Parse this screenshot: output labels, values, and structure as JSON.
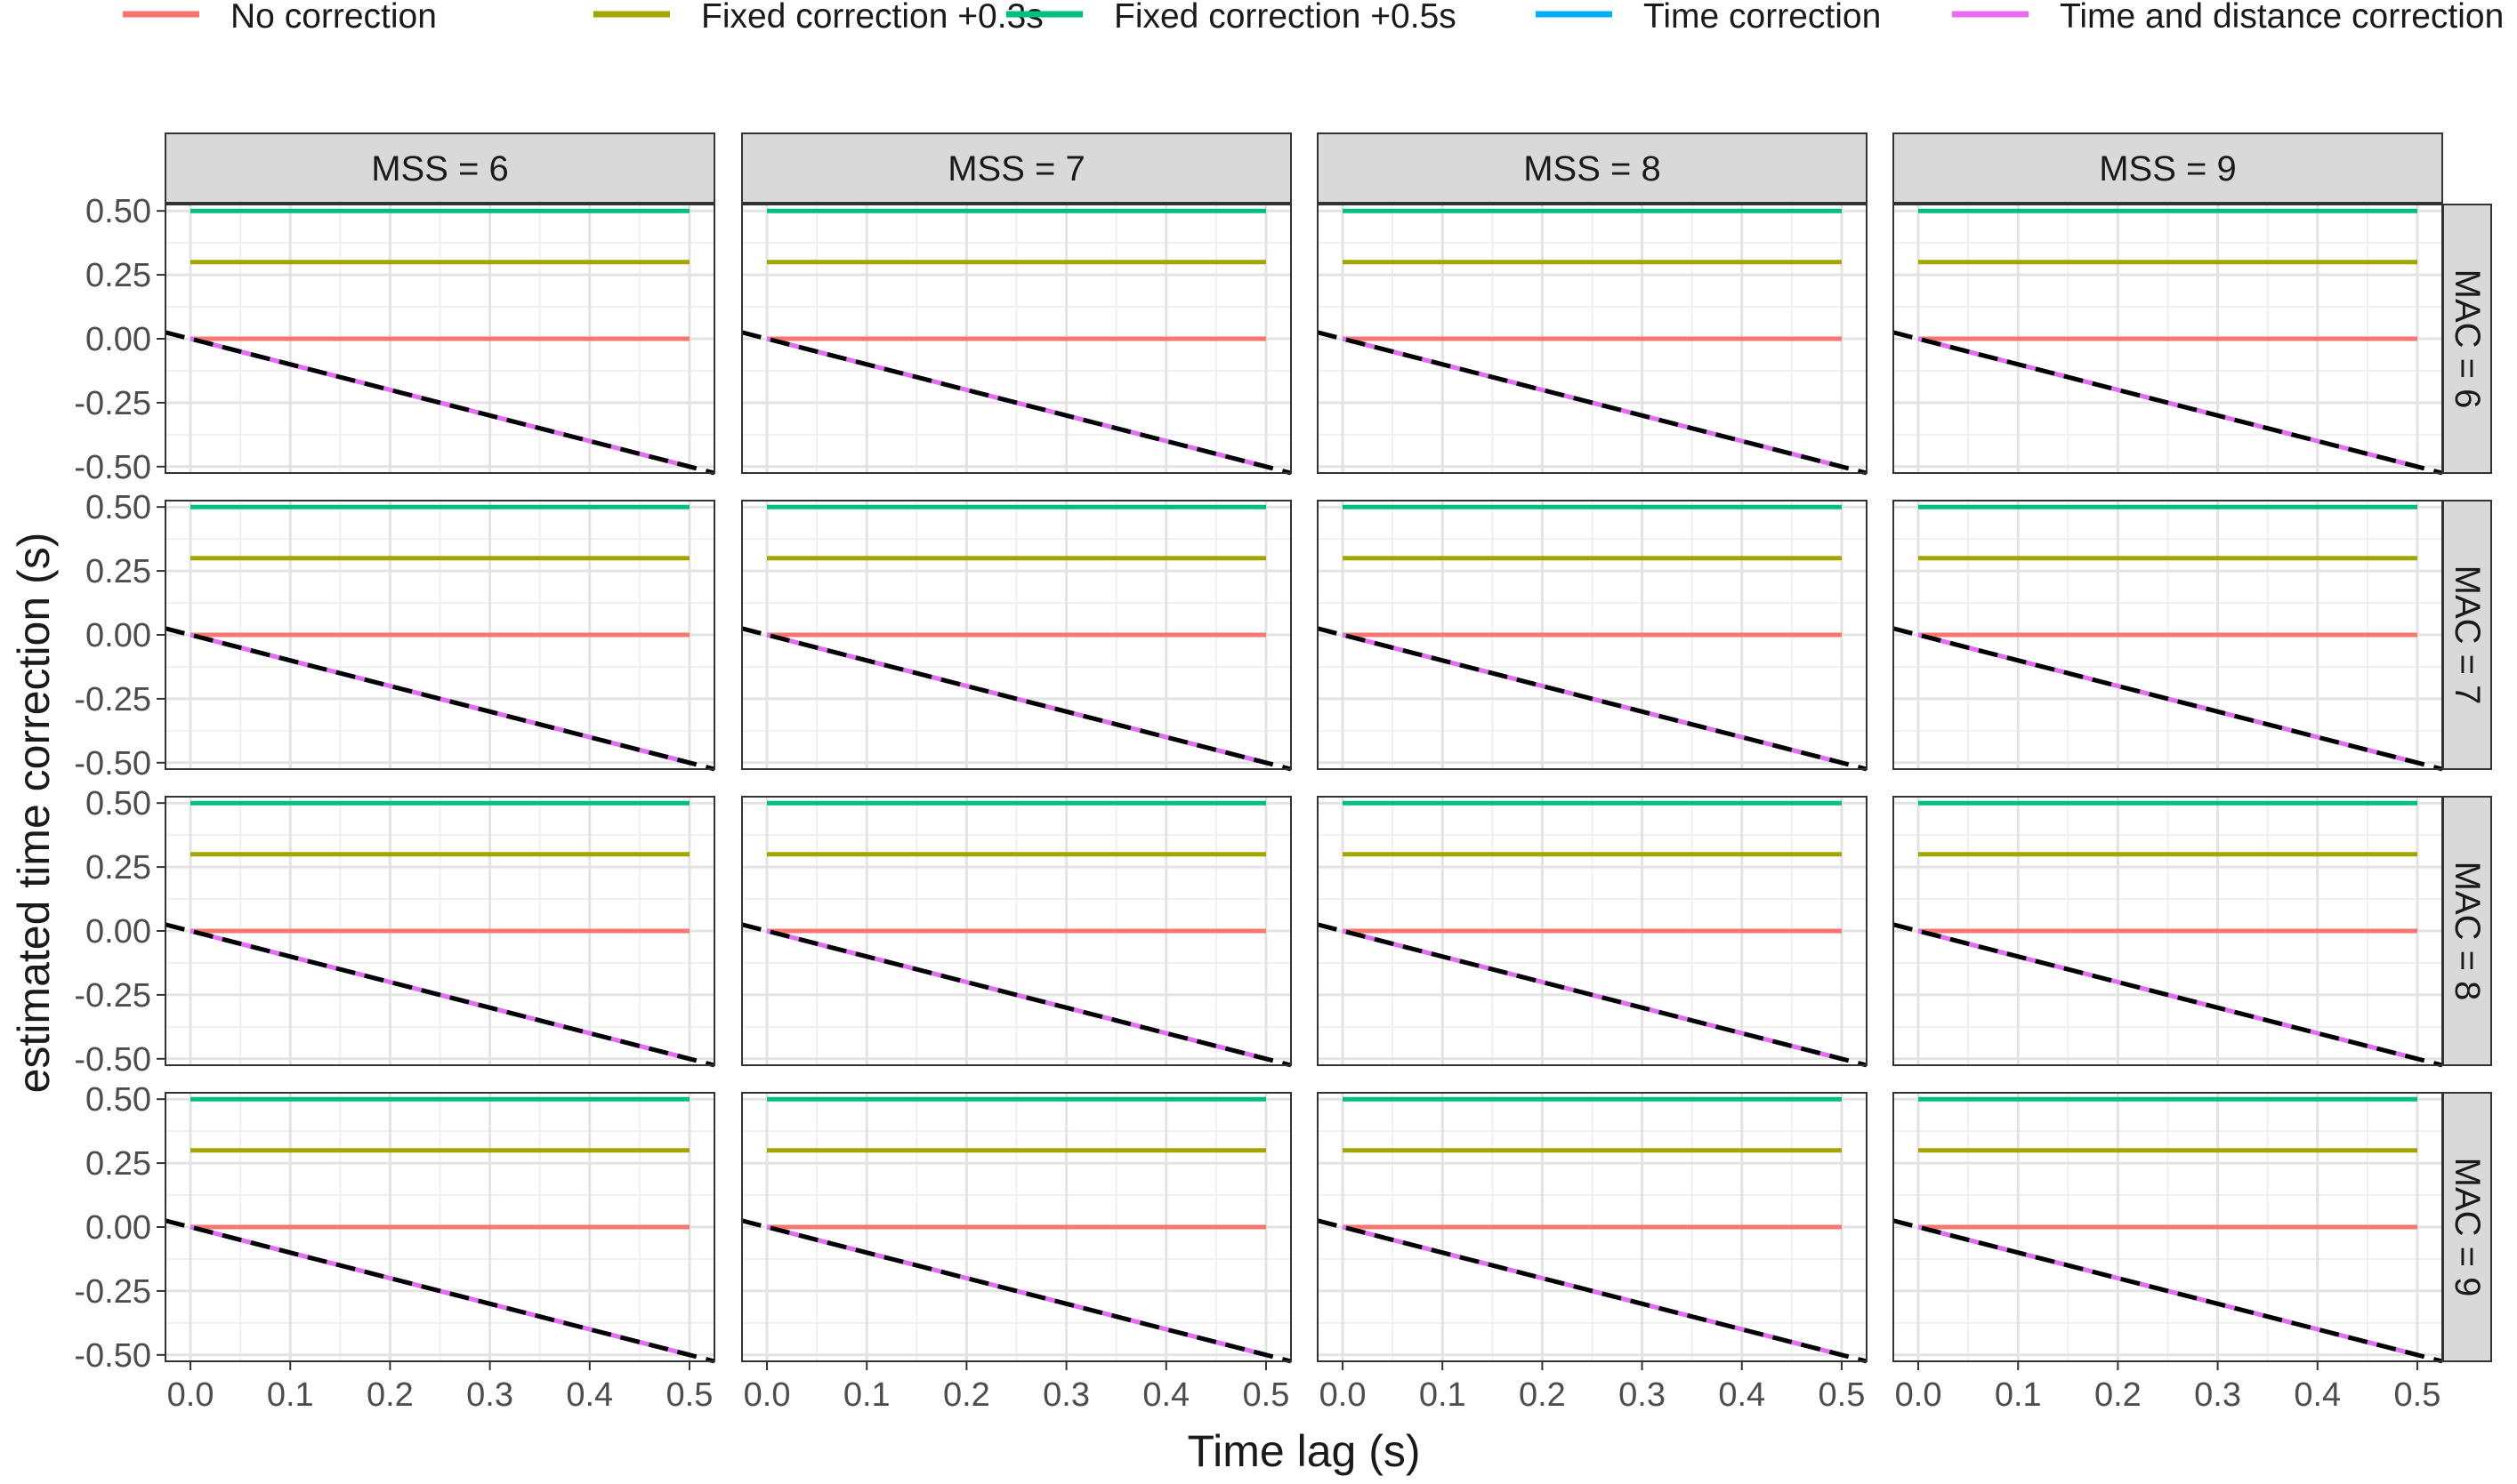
{
  "chart_data": {
    "type": "line",
    "layout": "facet-grid",
    "facet_col_labels": [
      "MSS = 6",
      "MSS = 7",
      "MSS = 8",
      "MSS = 9"
    ],
    "facet_row_labels": [
      "MAC = 6",
      "MAC = 7",
      "MAC = 8",
      "MAC = 9"
    ],
    "xlabel": "Time lag (s)",
    "ylabel": "estimated time correction (s)",
    "xlim": [
      -0.025,
      0.525
    ],
    "ylim": [
      -0.525,
      0.525
    ],
    "x_ticks": [
      0.0,
      0.1,
      0.2,
      0.3,
      0.4,
      0.5
    ],
    "x_tick_labels": [
      "0.0",
      "0.1",
      "0.2",
      "0.3",
      "0.4",
      "0.5"
    ],
    "y_ticks": [
      0.5,
      0.25,
      0.0,
      -0.25,
      -0.5
    ],
    "y_tick_labels": [
      "0.50",
      "0.25",
      "0.00",
      "-0.25",
      "-0.50"
    ],
    "legend_position": "top",
    "x": [
      0.0,
      0.05,
      0.1,
      0.15,
      0.2,
      0.25,
      0.3,
      0.35,
      0.4,
      0.45,
      0.5
    ],
    "series": [
      {
        "name": "No correction",
        "color": "#F8766D",
        "values": [
          0,
          0,
          0,
          0,
          0,
          0,
          0,
          0,
          0,
          0,
          0
        ]
      },
      {
        "name": "Fixed correction +0.3s",
        "color": "#A3A500",
        "values": [
          0.3,
          0.3,
          0.3,
          0.3,
          0.3,
          0.3,
          0.3,
          0.3,
          0.3,
          0.3,
          0.3
        ]
      },
      {
        "name": "Fixed correction +0.5s",
        "color": "#00BF7D",
        "values": [
          0.5,
          0.5,
          0.5,
          0.5,
          0.5,
          0.5,
          0.5,
          0.5,
          0.5,
          0.5,
          0.5
        ]
      },
      {
        "name": "Time correction",
        "color": "#00B0F6",
        "values": [
          0,
          -0.05,
          -0.1,
          -0.15,
          -0.2,
          -0.25,
          -0.3,
          -0.35,
          -0.4,
          -0.45,
          -0.5
        ]
      },
      {
        "name": "Time and distance correction",
        "color": "#E76BF3",
        "values": [
          0,
          -0.05,
          -0.1,
          -0.15,
          -0.2,
          -0.25,
          -0.3,
          -0.35,
          -0.4,
          -0.45,
          -0.5
        ]
      }
    ],
    "reference_line": {
      "description": "dashed identity line y = -x",
      "slope": -1,
      "intercept": 0,
      "color": "#000000"
    }
  }
}
